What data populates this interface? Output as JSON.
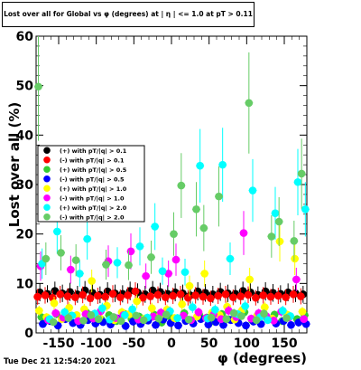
{
  "chart_data": {
    "type": "scatter",
    "title": "Lost over all for Global vs φ (degrees) at | η | <= 1.0 at pT > 0.11",
    "xlabel": "φ (degrees)",
    "ylabel": "Lost over all (%)",
    "xlim": [
      -180,
      180
    ],
    "ylim": [
      0,
      60
    ],
    "x_ticks": [
      -150,
      -100,
      -50,
      0,
      50,
      100,
      150
    ],
    "y_ticks": [
      0,
      10,
      20,
      30,
      40,
      50,
      60
    ],
    "legend_position": "left-middle",
    "series": [
      {
        "name": "(+) with pT/|q| > 0.1",
        "color": "#000000",
        "points": [
          [
            -175,
            8.2
          ],
          [
            -165,
            7.9
          ],
          [
            -155,
            8.5
          ],
          [
            -145,
            8.0
          ],
          [
            -135,
            8.3
          ],
          [
            -125,
            7.8
          ],
          [
            -115,
            8.6
          ],
          [
            -105,
            8.1
          ],
          [
            -95,
            7.7
          ],
          [
            -85,
            8.4
          ],
          [
            -75,
            8.0
          ],
          [
            -65,
            7.9
          ],
          [
            -55,
            8.5
          ],
          [
            -45,
            8.2
          ],
          [
            -35,
            7.8
          ],
          [
            -25,
            8.6
          ],
          [
            -15,
            8.3
          ],
          [
            -5,
            7.9
          ],
          [
            5,
            8.2
          ],
          [
            15,
            8.0
          ],
          [
            25,
            7.6
          ],
          [
            35,
            8.4
          ],
          [
            45,
            8.1
          ],
          [
            55,
            7.8
          ],
          [
            65,
            8.3
          ],
          [
            75,
            8.0
          ],
          [
            85,
            7.9
          ],
          [
            95,
            8.5
          ],
          [
            105,
            8.2
          ],
          [
            115,
            7.7
          ],
          [
            125,
            8.4
          ],
          [
            135,
            8.1
          ],
          [
            145,
            7.9
          ],
          [
            155,
            8.2
          ],
          [
            165,
            8.0
          ],
          [
            175,
            7.8
          ]
        ]
      },
      {
        "name": "(-) with pT/|q| > 0.1",
        "color": "#ff0000",
        "points": [
          [
            -178,
            7.3
          ],
          [
            -168,
            7.6
          ],
          [
            -158,
            7.1
          ],
          [
            -148,
            7.8
          ],
          [
            -138,
            7.4
          ],
          [
            -128,
            7.2
          ],
          [
            -118,
            7.7
          ],
          [
            -108,
            7.0
          ],
          [
            -98,
            7.5
          ],
          [
            -88,
            7.3
          ],
          [
            -78,
            7.9
          ],
          [
            -68,
            7.2
          ],
          [
            -58,
            7.6
          ],
          [
            -48,
            8.4
          ],
          [
            -38,
            7.1
          ],
          [
            -28,
            7.4
          ],
          [
            -18,
            7.7
          ],
          [
            -8,
            7.2
          ],
          [
            2,
            7.5
          ],
          [
            12,
            7.8
          ],
          [
            22,
            7.1
          ],
          [
            32,
            7.6
          ],
          [
            42,
            7.3
          ],
          [
            52,
            7.0
          ],
          [
            62,
            7.5
          ],
          [
            72,
            7.8
          ],
          [
            82,
            7.2
          ],
          [
            92,
            7.4
          ],
          [
            102,
            7.7
          ],
          [
            112,
            7.1
          ],
          [
            122,
            7.6
          ],
          [
            132,
            7.3
          ],
          [
            142,
            7.5
          ],
          [
            152,
            7.2
          ],
          [
            162,
            7.8
          ],
          [
            172,
            7.4
          ]
        ]
      },
      {
        "name": "(+) with pT/|q| > 0.5",
        "color": "#33cc33",
        "points": [
          [
            -173,
            3.2
          ],
          [
            -163,
            2.5
          ],
          [
            -153,
            3.8
          ],
          [
            -143,
            2.9
          ],
          [
            -133,
            3.5
          ],
          [
            -123,
            2.2
          ],
          [
            -113,
            4.1
          ],
          [
            -103,
            3.0
          ],
          [
            -93,
            2.7
          ],
          [
            -83,
            3.6
          ],
          [
            -73,
            2.4
          ],
          [
            -63,
            3.9
          ],
          [
            -53,
            2.8
          ],
          [
            -43,
            3.3
          ],
          [
            -33,
            2.6
          ],
          [
            -23,
            3.7
          ],
          [
            -13,
            2.1
          ],
          [
            -3,
            3.4
          ],
          [
            7,
            2.9
          ],
          [
            17,
            4.0
          ],
          [
            27,
            2.5
          ],
          [
            37,
            3.6
          ],
          [
            47,
            3.1
          ],
          [
            57,
            2.3
          ],
          [
            67,
            3.8
          ],
          [
            77,
            2.7
          ],
          [
            87,
            3.2
          ],
          [
            97,
            4.2
          ],
          [
            107,
            2.6
          ],
          [
            117,
            3.5
          ],
          [
            127,
            2.9
          ],
          [
            137,
            3.7
          ],
          [
            147,
            2.4
          ],
          [
            157,
            3.3
          ],
          [
            167,
            2.8
          ],
          [
            177,
            3.6
          ]
        ]
      },
      {
        "name": "(-) with pT/|q| > 0.5",
        "color": "#0000ff",
        "points": [
          [
            -171,
            1.8
          ],
          [
            -161,
            2.4
          ],
          [
            -151,
            1.5
          ],
          [
            -141,
            2.8
          ],
          [
            -131,
            2.0
          ],
          [
            -121,
            1.6
          ],
          [
            -111,
            2.6
          ],
          [
            -101,
            1.9
          ],
          [
            -91,
            2.2
          ],
          [
            -81,
            1.7
          ],
          [
            -71,
            2.9
          ],
          [
            -61,
            1.4
          ],
          [
            -51,
            2.3
          ],
          [
            -41,
            1.8
          ],
          [
            -31,
            2.5
          ],
          [
            -21,
            1.6
          ],
          [
            -11,
            2.7
          ],
          [
            -1,
            2.0
          ],
          [
            9,
            1.5
          ],
          [
            19,
            2.4
          ],
          [
            29,
            1.9
          ],
          [
            39,
            2.8
          ],
          [
            49,
            1.7
          ],
          [
            59,
            2.2
          ],
          [
            69,
            1.6
          ],
          [
            79,
            2.6
          ],
          [
            89,
            2.0
          ],
          [
            99,
            1.5
          ],
          [
            109,
            2.3
          ],
          [
            119,
            1.8
          ],
          [
            129,
            2.7
          ],
          [
            139,
            1.9
          ],
          [
            149,
            2.4
          ],
          [
            159,
            1.6
          ],
          [
            169,
            2.1
          ],
          [
            179,
            1.8
          ]
        ]
      },
      {
        "name": "(+) with pT/|q| > 1.0",
        "color": "#ffff00",
        "points": [
          [
            -176,
            4.5
          ],
          [
            -166,
            3.2
          ],
          [
            -156,
            6.0
          ],
          [
            -146,
            2.8
          ],
          [
            -136,
            5.1
          ],
          [
            -126,
            3.6
          ],
          [
            -116,
            4.8
          ],
          [
            -106,
            10.5
          ],
          [
            -96,
            3.1
          ],
          [
            -86,
            5.5
          ],
          [
            -76,
            2.6
          ],
          [
            -66,
            4.2
          ],
          [
            -56,
            3.8
          ],
          [
            -46,
            6.4
          ],
          [
            -36,
            2.9
          ],
          [
            -26,
            5.0
          ],
          [
            -16,
            3.4
          ],
          [
            -6,
            4.7
          ],
          [
            4,
            3.0
          ],
          [
            14,
            5.8
          ],
          [
            24,
            9.5
          ],
          [
            34,
            3.3
          ],
          [
            44,
            12.0
          ],
          [
            54,
            4.1
          ],
          [
            64,
            3.6
          ],
          [
            74,
            5.3
          ],
          [
            84,
            2.7
          ],
          [
            94,
            4.6
          ],
          [
            104,
            10.8
          ],
          [
            114,
            3.5
          ],
          [
            124,
            5.2
          ],
          [
            134,
            2.9
          ],
          [
            144,
            18.5
          ],
          [
            154,
            3.7
          ],
          [
            164,
            15.0
          ],
          [
            174,
            4.3
          ]
        ]
      },
      {
        "name": "(-) with pT/|q| > 1.0",
        "color": "#ff00ff",
        "points": [
          [
            -174,
            13.5
          ],
          [
            -164,
            2.6
          ],
          [
            -154,
            4.0
          ],
          [
            -144,
            3.1
          ],
          [
            -134,
            12.8
          ],
          [
            -124,
            2.4
          ],
          [
            -114,
            3.8
          ],
          [
            -104,
            2.9
          ],
          [
            -94,
            4.4
          ],
          [
            -84,
            14.5
          ],
          [
            -74,
            3.0
          ],
          [
            -64,
            3.6
          ],
          [
            -54,
            16.5
          ],
          [
            -44,
            2.7
          ],
          [
            -34,
            11.5
          ],
          [
            -24,
            3.3
          ],
          [
            -14,
            4.1
          ],
          [
            -4,
            12.0
          ],
          [
            6,
            14.8
          ],
          [
            16,
            3.5
          ],
          [
            26,
            2.6
          ],
          [
            36,
            4.2
          ],
          [
            46,
            3.0
          ],
          [
            56,
            3.7
          ],
          [
            66,
            2.8
          ],
          [
            76,
            4.5
          ],
          [
            86,
            3.2
          ],
          [
            96,
            20.2
          ],
          [
            106,
            2.9
          ],
          [
            116,
            4.0
          ],
          [
            126,
            3.4
          ],
          [
            136,
            2.5
          ],
          [
            146,
            4.3
          ],
          [
            156,
            3.1
          ],
          [
            166,
            10.8
          ],
          [
            176,
            2.8
          ]
        ]
      },
      {
        "name": "(+) with pT/|q| > 2.0",
        "color": "#00ffff",
        "points": [
          [
            -172,
            14.0
          ],
          [
            -162,
            2.8
          ],
          [
            -152,
            20.5
          ],
          [
            -142,
            4.2
          ],
          [
            -132,
            3.5
          ],
          [
            -122,
            12.0
          ],
          [
            -112,
            19.0
          ],
          [
            -102,
            3.9
          ],
          [
            -92,
            5.0
          ],
          [
            -82,
            2.7
          ],
          [
            -72,
            14.2
          ],
          [
            -62,
            3.6
          ],
          [
            -52,
            4.8
          ],
          [
            -42,
            17.5
          ],
          [
            -32,
            3.1
          ],
          [
            -22,
            21.5
          ],
          [
            -12,
            12.5
          ],
          [
            -2,
            4.4
          ],
          [
            8,
            3.0
          ],
          [
            18,
            12.3
          ],
          [
            28,
            5.2
          ],
          [
            38,
            33.8
          ],
          [
            48,
            2.9
          ],
          [
            58,
            4.7
          ],
          [
            68,
            34.0
          ],
          [
            78,
            15.0
          ],
          [
            88,
            3.8
          ],
          [
            98,
            5.4
          ],
          [
            108,
            28.8
          ],
          [
            118,
            3.2
          ],
          [
            128,
            2.6
          ],
          [
            138,
            24.2
          ],
          [
            148,
            4.5
          ],
          [
            158,
            3.4
          ],
          [
            168,
            30.5
          ],
          [
            178,
            25.0
          ]
        ]
      },
      {
        "name": "(-) with pT/|q| > 2.0",
        "color": "#66cc66",
        "points": [
          [
            -177,
            49.8
          ],
          [
            -167,
            15.0
          ],
          [
            -157,
            2.2
          ],
          [
            -147,
            16.2
          ],
          [
            -137,
            3.0
          ],
          [
            -127,
            14.7
          ],
          [
            -117,
            2.5
          ],
          [
            -107,
            3.6
          ],
          [
            -97,
            2.8
          ],
          [
            -87,
            13.8
          ],
          [
            -77,
            3.2
          ],
          [
            -67,
            2.4
          ],
          [
            -57,
            13.7
          ],
          [
            -47,
            3.5
          ],
          [
            -37,
            2.6
          ],
          [
            -27,
            15.3
          ],
          [
            -17,
            2.9
          ],
          [
            -7,
            3.7
          ],
          [
            3,
            20.0
          ],
          [
            13,
            29.8
          ],
          [
            23,
            2.7
          ],
          [
            33,
            25.0
          ],
          [
            43,
            21.2
          ],
          [
            53,
            3.1
          ],
          [
            63,
            27.6
          ],
          [
            73,
            2.8
          ],
          [
            83,
            4.0
          ],
          [
            93,
            3.4
          ],
          [
            103,
            46.5
          ],
          [
            113,
            2.6
          ],
          [
            123,
            3.9
          ],
          [
            133,
            19.5
          ],
          [
            143,
            22.5
          ],
          [
            153,
            3.0
          ],
          [
            163,
            18.6
          ],
          [
            173,
            32.2
          ]
        ]
      }
    ]
  },
  "timestamp": "Tue Dec 21 12:54:20 2021"
}
